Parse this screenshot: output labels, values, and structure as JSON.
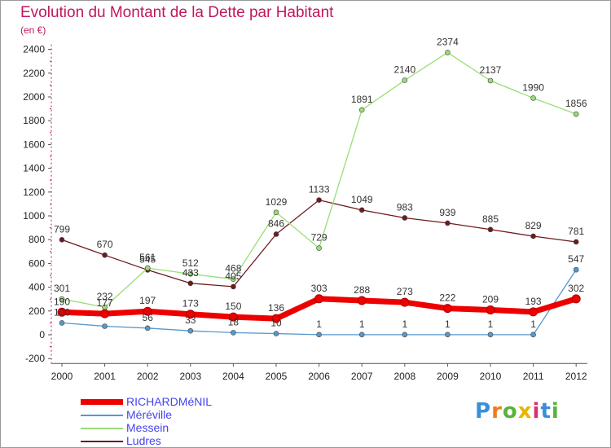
{
  "title": "Evolution du Montant de la Dette par Habitant",
  "unit_label": "(en €)",
  "logo_text": "Proxiti",
  "colors": {
    "title": "#c0175e",
    "axis": "#555555",
    "tick_label": "#222222",
    "value_label": "#333333",
    "grid": "#aaaaaa"
  },
  "chart_data": {
    "type": "line",
    "title": "Evolution du Montant de la Dette par Habitant",
    "ylabel": "(en €)",
    "xlabel": "",
    "x": [
      "2000",
      "2001",
      "2002",
      "2003",
      "2004",
      "2005",
      "2006",
      "2007",
      "2008",
      "2009",
      "2010",
      "2011",
      "2012"
    ],
    "ylim": [
      -200,
      2400
    ],
    "yticks": [
      -200,
      0,
      200,
      400,
      600,
      800,
      1000,
      1200,
      1400,
      1600,
      1800,
      2000,
      2200,
      2400
    ],
    "grid": false,
    "legend_position": "bottom-left",
    "series": [
      {
        "name": "Ludres",
        "color": "#6e1a1f",
        "values": [
          799,
          670,
          545,
          433,
          405,
          846,
          1133,
          1049,
          983,
          939,
          885,
          829,
          781
        ],
        "labels": [
          "799",
          "670",
          "545",
          "433",
          "405",
          "846",
          "1133",
          "1049",
          "983",
          "939",
          "885",
          "829",
          "781"
        ]
      },
      {
        "name": "Messein",
        "color": "#99dd77",
        "values": [
          301,
          232,
          561,
          512,
          468,
          1029,
          729,
          1891,
          2140,
          2374,
          2137,
          1990,
          1856
        ],
        "labels": [
          "301",
          "232",
          "561",
          "512",
          "468",
          "1029",
          "729",
          "1891",
          "2140",
          "2374",
          "2137",
          "1990",
          "1856"
        ]
      },
      {
        "name": "Méréville",
        "color": "#5599cc",
        "values": [
          100,
          72,
          56,
          33,
          18,
          10,
          1,
          1,
          1,
          1,
          1,
          1,
          547
        ],
        "labels": [
          "100",
          "",
          "56",
          "33",
          "18",
          "10",
          "1",
          "1",
          "1",
          "1",
          "1",
          "1",
          "547"
        ]
      },
      {
        "name": "RICHARDMéNIL",
        "color": "#ee0000",
        "values": [
          190,
          177,
          197,
          173,
          150,
          136,
          303,
          288,
          273,
          222,
          209,
          193,
          302
        ],
        "labels": [
          "190",
          "177",
          "197",
          "173",
          "150",
          "136",
          "303",
          "288",
          "273",
          "222",
          "209",
          "193",
          "302"
        ]
      }
    ]
  },
  "legend": {
    "items": [
      {
        "label": "RICHARDMéNIL",
        "color": "#ee0000"
      },
      {
        "label": "Méréville",
        "color": "#5599cc"
      },
      {
        "label": "Messein",
        "color": "#99dd77"
      },
      {
        "label": "Ludres",
        "color": "#6e1a1f"
      }
    ]
  }
}
